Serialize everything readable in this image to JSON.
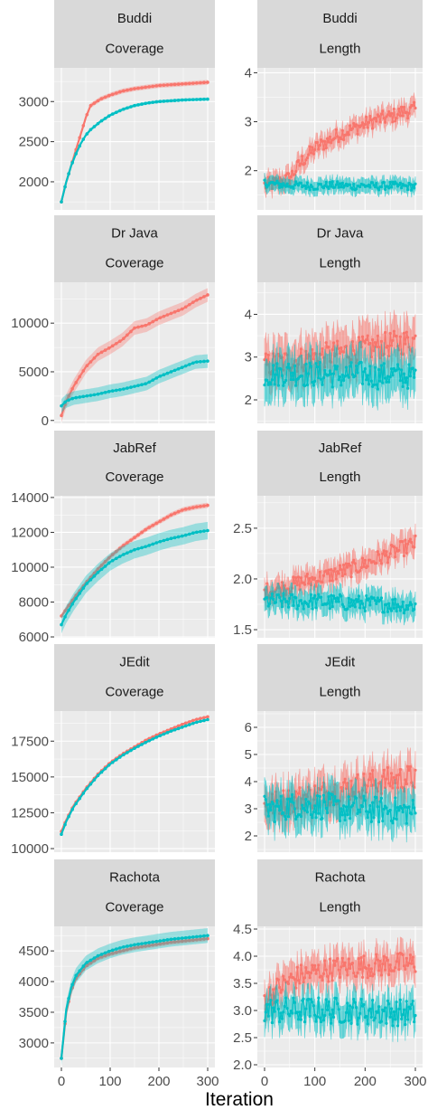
{
  "figure": {
    "xlabel": "Iteration",
    "colors": {
      "series_a": "#F8766D",
      "series_b": "#00BFC4",
      "strip": "#D9D9D9",
      "panel": "#EBEBEB",
      "grid": "#FFFFFF"
    }
  },
  "chart_data": [
    {
      "type": "line",
      "title": "Buddi",
      "metric": "Coverage",
      "x": [
        0,
        10,
        20,
        30,
        40,
        50,
        60,
        80,
        100,
        125,
        150,
        175,
        200,
        225,
        250,
        275,
        300
      ],
      "series": [
        {
          "values": [
            1750,
            2000,
            2200,
            2400,
            2600,
            2800,
            2950,
            3030,
            3080,
            3130,
            3160,
            3180,
            3200,
            3210,
            3220,
            3230,
            3240
          ],
          "band": 30
        },
        {
          "values": [
            1750,
            2000,
            2200,
            2350,
            2480,
            2580,
            2650,
            2750,
            2830,
            2900,
            2950,
            2980,
            3000,
            3010,
            3020,
            3025,
            3030
          ],
          "band": 20
        }
      ],
      "xlim": [
        0,
        300
      ],
      "ylim": [
        1650,
        3420
      ],
      "yticks": [
        2000,
        2500,
        3000
      ],
      "yticklabels": [
        "2000",
        "2500",
        "3000"
      ],
      "xticks": [
        0,
        100,
        200,
        300
      ],
      "grid": true
    },
    {
      "type": "line",
      "title": "Buddi",
      "metric": "Length",
      "x": [
        0,
        25,
        50,
        75,
        100,
        125,
        150,
        175,
        200,
        225,
        250,
        275,
        300
      ],
      "series": [
        {
          "values": [
            1.7,
            1.75,
            1.85,
            2.2,
            2.45,
            2.6,
            2.75,
            2.85,
            2.95,
            3.05,
            3.1,
            3.2,
            3.25
          ],
          "band": 0.2,
          "noise": 0.15
        },
        {
          "values": [
            1.75,
            1.72,
            1.7,
            1.7,
            1.68,
            1.7,
            1.7,
            1.68,
            1.7,
            1.68,
            1.7,
            1.68,
            1.68
          ],
          "band": 0.15,
          "noise": 0.08
        }
      ],
      "xlim": [
        0,
        300
      ],
      "ylim": [
        1.2,
        4.1
      ],
      "yticks": [
        2,
        3,
        4
      ],
      "yticklabels": [
        "2",
        "3",
        "4"
      ],
      "xticks": [
        0,
        100,
        200,
        300
      ],
      "grid": true
    },
    {
      "type": "line",
      "title": "Dr Java",
      "metric": "Coverage",
      "x": [
        0,
        10,
        25,
        50,
        75,
        100,
        125,
        150,
        175,
        200,
        225,
        250,
        275,
        300
      ],
      "series": [
        {
          "values": [
            500,
            2000,
            3500,
            5500,
            6800,
            7500,
            8300,
            9500,
            9800,
            10500,
            11000,
            11500,
            12300,
            12900
          ],
          "band": 700
        },
        {
          "values": [
            1500,
            2000,
            2300,
            2500,
            2700,
            3000,
            3200,
            3500,
            3800,
            4500,
            5000,
            5500,
            6000,
            6100
          ],
          "band": 700
        }
      ],
      "xlim": [
        0,
        300
      ],
      "ylim": [
        -300,
        14200
      ],
      "yticks": [
        0,
        5000,
        10000
      ],
      "yticklabels": [
        "0",
        "5000",
        "10000"
      ],
      "xticks": [
        0,
        100,
        200,
        300
      ],
      "grid": true
    },
    {
      "type": "line",
      "title": "Dr Java",
      "metric": "Length",
      "x": [
        0,
        25,
        50,
        75,
        100,
        125,
        150,
        175,
        200,
        225,
        250,
        275,
        300
      ],
      "series": [
        {
          "values": [
            2.8,
            2.85,
            2.9,
            2.95,
            3.0,
            3.05,
            3.1,
            3.15,
            3.2,
            3.25,
            3.3,
            3.35,
            3.4
          ],
          "band": 0.5,
          "noise": 0.3
        },
        {
          "values": [
            2.6,
            2.6,
            2.65,
            2.6,
            2.6,
            2.6,
            2.55,
            2.6,
            2.6,
            2.55,
            2.6,
            2.55,
            2.55
          ],
          "band": 0.5,
          "noise": 0.3
        }
      ],
      "xlim": [
        0,
        300
      ],
      "ylim": [
        1.45,
        4.75
      ],
      "yticks": [
        2,
        3,
        4
      ],
      "yticklabels": [
        "2",
        "3",
        "4"
      ],
      "xticks": [
        0,
        100,
        200,
        300
      ],
      "grid": true
    },
    {
      "type": "line",
      "title": "JabRef",
      "metric": "Coverage",
      "x": [
        0,
        10,
        25,
        50,
        75,
        100,
        125,
        150,
        175,
        200,
        225,
        250,
        275,
        300
      ],
      "series": [
        {
          "values": [
            7200,
            7600,
            8200,
            9100,
            9900,
            10600,
            11200,
            11700,
            12200,
            12600,
            13000,
            13300,
            13450,
            13550
          ],
          "band": 150
        },
        {
          "values": [
            6700,
            7300,
            8000,
            9000,
            9700,
            10300,
            10700,
            11000,
            11200,
            11450,
            11650,
            11800,
            12000,
            12100
          ],
          "band": 500
        }
      ],
      "xlim": [
        0,
        300
      ],
      "ylim": [
        5950,
        14100
      ],
      "yticks": [
        6000,
        8000,
        10000,
        12000,
        14000
      ],
      "yticklabels": [
        "6000",
        "8000",
        "10000",
        "12000",
        "14000"
      ],
      "xticks": [
        0,
        100,
        200,
        300
      ],
      "grid": true
    },
    {
      "type": "line",
      "title": "JabRef",
      "metric": "Length",
      "x": [
        0,
        25,
        50,
        75,
        100,
        125,
        150,
        175,
        200,
        225,
        250,
        275,
        300
      ],
      "series": [
        {
          "values": [
            1.88,
            1.9,
            1.93,
            1.97,
            2.0,
            2.03,
            2.07,
            2.1,
            2.15,
            2.2,
            2.25,
            2.3,
            2.35
          ],
          "band": 0.12,
          "noise": 0.08
        },
        {
          "values": [
            1.78,
            1.78,
            1.78,
            1.77,
            1.78,
            1.77,
            1.77,
            1.76,
            1.76,
            1.75,
            1.75,
            1.74,
            1.74
          ],
          "band": 0.12,
          "noise": 0.08
        }
      ],
      "xlim": [
        0,
        300
      ],
      "ylim": [
        1.42,
        2.82
      ],
      "yticks": [
        1.5,
        2.0,
        2.5
      ],
      "yticklabels": [
        "1.5",
        "2.0",
        "2.5"
      ],
      "xticks": [
        0,
        100,
        200,
        300
      ],
      "grid": true
    },
    {
      "type": "line",
      "title": "JEdit",
      "metric": "Coverage",
      "x": [
        0,
        10,
        25,
        50,
        75,
        100,
        125,
        150,
        175,
        200,
        225,
        250,
        275,
        300
      ],
      "series": [
        {
          "values": [
            11200,
            12000,
            13000,
            14200,
            15200,
            16000,
            16600,
            17100,
            17600,
            18000,
            18350,
            18700,
            19000,
            19200
          ],
          "band": 80
        },
        {
          "values": [
            11000,
            11900,
            12900,
            14100,
            15100,
            15900,
            16500,
            17000,
            17450,
            17850,
            18200,
            18500,
            18800,
            19000
          ],
          "band": 80
        }
      ],
      "xlim": [
        0,
        300
      ],
      "ylim": [
        9750,
        19600
      ],
      "yticks": [
        10000,
        12500,
        15000,
        17500
      ],
      "yticklabels": [
        "10000",
        "12500",
        "15000",
        "17500"
      ],
      "xticks": [
        0,
        100,
        200,
        300
      ],
      "grid": true
    },
    {
      "type": "line",
      "title": "JEdit",
      "metric": "Length",
      "x": [
        0,
        25,
        50,
        75,
        100,
        125,
        150,
        175,
        200,
        225,
        250,
        275,
        300
      ],
      "series": [
        {
          "values": [
            3.1,
            3.2,
            3.3,
            3.4,
            3.5,
            3.6,
            3.7,
            3.8,
            3.9,
            4.0,
            4.05,
            4.1,
            4.15
          ],
          "band": 0.7,
          "noise": 0.5
        },
        {
          "values": [
            3.0,
            3.0,
            3.1,
            3.1,
            3.1,
            3.1,
            3.0,
            3.0,
            3.0,
            2.95,
            2.95,
            2.9,
            2.9
          ],
          "band": 0.7,
          "noise": 0.5
        }
      ],
      "xlim": [
        0,
        300
      ],
      "ylim": [
        1.4,
        6.6
      ],
      "yticks": [
        2,
        3,
        4,
        5,
        6
      ],
      "yticklabels": [
        "2",
        "3",
        "4",
        "5",
        "6"
      ],
      "xticks": [
        0,
        100,
        200,
        300
      ],
      "grid": true
    },
    {
      "type": "line",
      "title": "Rachota",
      "metric": "Coverage",
      "x": [
        0,
        10,
        20,
        30,
        50,
        75,
        100,
        125,
        150,
        175,
        200,
        225,
        250,
        275,
        300
      ],
      "series": [
        {
          "values": [
            2750,
            3500,
            3850,
            4050,
            4250,
            4380,
            4450,
            4500,
            4550,
            4580,
            4610,
            4640,
            4660,
            4680,
            4700
          ],
          "band": 40
        },
        {
          "values": [
            2750,
            3550,
            3900,
            4100,
            4300,
            4420,
            4500,
            4560,
            4600,
            4630,
            4660,
            4690,
            4710,
            4730,
            4750
          ],
          "band": 120
        }
      ],
      "xlim": [
        0,
        300
      ],
      "ylim": [
        2600,
        4900
      ],
      "yticks": [
        3000,
        3500,
        4000,
        4500
      ],
      "yticklabels": [
        "3000",
        "3500",
        "4000",
        "4500"
      ],
      "xticks": [
        0,
        100,
        200,
        300
      ],
      "grid": true
    },
    {
      "type": "line",
      "title": "Rachota",
      "metric": "Length",
      "x": [
        0,
        25,
        50,
        75,
        100,
        125,
        150,
        175,
        200,
        225,
        250,
        275,
        300
      ],
      "series": [
        {
          "values": [
            3.2,
            3.4,
            3.55,
            3.65,
            3.7,
            3.75,
            3.78,
            3.8,
            3.82,
            3.83,
            3.85,
            3.85,
            3.86
          ],
          "band": 0.3,
          "noise": 0.22
        },
        {
          "values": [
            3.0,
            3.0,
            3.0,
            3.0,
            3.0,
            3.0,
            3.0,
            3.0,
            2.98,
            2.98,
            2.97,
            2.96,
            2.95
          ],
          "band": 0.3,
          "noise": 0.25
        }
      ],
      "xlim": [
        0,
        300
      ],
      "ylim": [
        1.95,
        4.55
      ],
      "yticks": [
        2.0,
        2.5,
        3.0,
        3.5,
        4.0,
        4.5
      ],
      "yticklabels": [
        "2.0",
        "2.5",
        "3.0",
        "3.5",
        "4.0",
        "4.5"
      ],
      "xticks": [
        0,
        100,
        200,
        300
      ],
      "grid": true
    }
  ]
}
